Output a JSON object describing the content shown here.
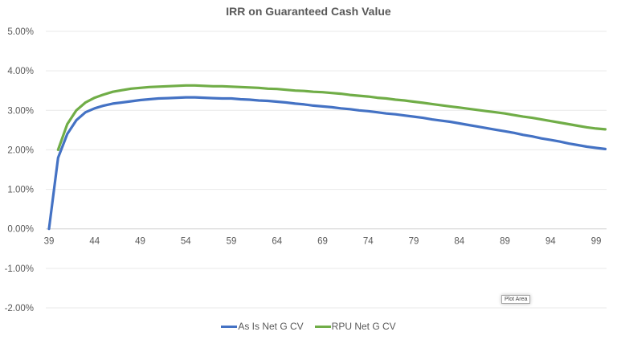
{
  "chart_data": {
    "type": "line",
    "title": "IRR on Guaranteed Cash Value",
    "x": [
      39,
      40,
      41,
      42,
      43,
      44,
      45,
      46,
      47,
      48,
      49,
      50,
      51,
      52,
      53,
      54,
      55,
      56,
      57,
      58,
      59,
      60,
      61,
      62,
      63,
      64,
      65,
      66,
      67,
      68,
      69,
      70,
      71,
      72,
      73,
      74,
      75,
      76,
      77,
      78,
      79,
      80,
      81,
      82,
      83,
      84,
      85,
      86,
      87,
      88,
      89,
      90,
      91,
      92,
      93,
      94,
      95,
      96,
      97,
      98,
      99,
      100
    ],
    "x_ticks": [
      "39",
      "44",
      "49",
      "54",
      "59",
      "64",
      "69",
      "74",
      "79",
      "84",
      "89",
      "94",
      "99"
    ],
    "y_ticks": [
      "5.00%",
      "4.00%",
      "3.00%",
      "2.00%",
      "1.00%",
      "0.00%",
      "-1.00%",
      "-2.00%"
    ],
    "ylim": [
      -2,
      5
    ],
    "grid": true,
    "legend": "bottom",
    "series": [
      {
        "name": "As Is Net G CV",
        "color": "#4472C4",
        "values": [
          0,
          1.8,
          2.4,
          2.75,
          2.95,
          3.05,
          3.12,
          3.17,
          3.2,
          3.23,
          3.26,
          3.28,
          3.3,
          3.31,
          3.32,
          3.33,
          3.33,
          3.32,
          3.31,
          3.3,
          3.3,
          3.28,
          3.27,
          3.25,
          3.24,
          3.22,
          3.2,
          3.17,
          3.15,
          3.12,
          3.1,
          3.08,
          3.05,
          3.03,
          3.0,
          2.98,
          2.95,
          2.92,
          2.9,
          2.87,
          2.84,
          2.81,
          2.77,
          2.74,
          2.71,
          2.67,
          2.63,
          2.59,
          2.55,
          2.51,
          2.47,
          2.43,
          2.38,
          2.34,
          2.29,
          2.25,
          2.21,
          2.16,
          2.12,
          2.08,
          2.05,
          2.02
        ]
      },
      {
        "name": "RPU Net G CV",
        "color": "#70AD47",
        "values": [
          null,
          2.0,
          2.65,
          3.0,
          3.2,
          3.32,
          3.4,
          3.47,
          3.51,
          3.55,
          3.57,
          3.59,
          3.6,
          3.61,
          3.62,
          3.63,
          3.63,
          3.62,
          3.61,
          3.61,
          3.6,
          3.59,
          3.58,
          3.57,
          3.55,
          3.54,
          3.52,
          3.5,
          3.49,
          3.47,
          3.46,
          3.44,
          3.42,
          3.39,
          3.37,
          3.35,
          3.32,
          3.3,
          3.27,
          3.25,
          3.22,
          3.19,
          3.16,
          3.13,
          3.1,
          3.07,
          3.04,
          3.01,
          2.98,
          2.95,
          2.92,
          2.88,
          2.84,
          2.81,
          2.77,
          2.73,
          2.69,
          2.65,
          2.61,
          2.57,
          2.54,
          2.52
        ]
      }
    ]
  },
  "tooltip": "Plot Area"
}
